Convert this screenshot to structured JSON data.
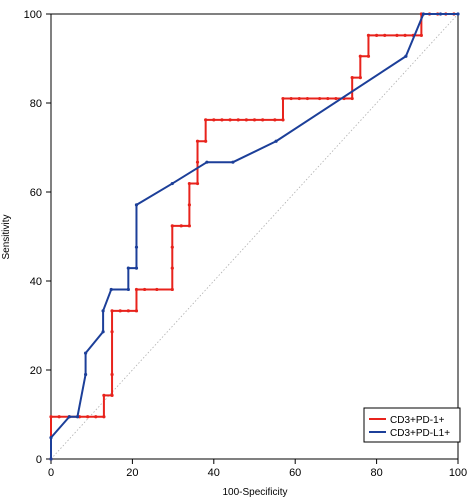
{
  "chart_data": {
    "type": "line",
    "title": "",
    "xlabel": "100-Specificity",
    "ylabel": "Sensitivity",
    "xlim": [
      0,
      100
    ],
    "ylim": [
      0,
      100
    ],
    "x_ticks": [
      0,
      20,
      40,
      60,
      80,
      100
    ],
    "y_ticks": [
      0,
      20,
      40,
      60,
      80,
      100
    ],
    "x_tick_labels": [
      "0",
      "20",
      "40",
      "60",
      "80",
      "100"
    ],
    "y_tick_labels": [
      "0",
      "20",
      "40",
      "60",
      "80",
      "100"
    ],
    "grid": false,
    "reference_line": {
      "from": [
        0,
        0
      ],
      "to": [
        100,
        100
      ],
      "style": "dotted"
    },
    "legend": {
      "position": "bottom-right"
    },
    "series": [
      {
        "name": "CD3+PD-1+",
        "color": "#e8231c",
        "points": [
          [
            0,
            0
          ],
          [
            0,
            9.5
          ],
          [
            2,
            9.5
          ],
          [
            4.5,
            9.5
          ],
          [
            7,
            9.5
          ],
          [
            9,
            9.5
          ],
          [
            11,
            9.5
          ],
          [
            13,
            9.5
          ],
          [
            13,
            14.3
          ],
          [
            15,
            14.3
          ],
          [
            15,
            19
          ],
          [
            15,
            28.6
          ],
          [
            15,
            33.3
          ],
          [
            17,
            33.3
          ],
          [
            19,
            33.3
          ],
          [
            21,
            33.3
          ],
          [
            21,
            38.1
          ],
          [
            23,
            38.1
          ],
          [
            26,
            38.1
          ],
          [
            29.8,
            38.1
          ],
          [
            29.8,
            42.9
          ],
          [
            29.8,
            47.6
          ],
          [
            29.8,
            52.4
          ],
          [
            32,
            52.4
          ],
          [
            34,
            52.4
          ],
          [
            34,
            57.1
          ],
          [
            34,
            61.9
          ],
          [
            36,
            61.9
          ],
          [
            36,
            66.7
          ],
          [
            36,
            71.4
          ],
          [
            38,
            71.4
          ],
          [
            38,
            76.2
          ],
          [
            40,
            76.2
          ],
          [
            42,
            76.2
          ],
          [
            44,
            76.2
          ],
          [
            46,
            76.2
          ],
          [
            48,
            76.2
          ],
          [
            50,
            76.2
          ],
          [
            52,
            76.2
          ],
          [
            55,
            76.2
          ],
          [
            57,
            76.2
          ],
          [
            57,
            81
          ],
          [
            59,
            81
          ],
          [
            61,
            81
          ],
          [
            63,
            81
          ],
          [
            66,
            81
          ],
          [
            68,
            81
          ],
          [
            70,
            81
          ],
          [
            72,
            81
          ],
          [
            74,
            81
          ],
          [
            74,
            85.7
          ],
          [
            76,
            85.7
          ],
          [
            76,
            90.5
          ],
          [
            78,
            90.5
          ],
          [
            78,
            95.2
          ],
          [
            80,
            95.2
          ],
          [
            82,
            95.2
          ],
          [
            85,
            95.2
          ],
          [
            87,
            95.2
          ],
          [
            89,
            95.2
          ],
          [
            91,
            95.2
          ],
          [
            91,
            100
          ],
          [
            93,
            100
          ],
          [
            95,
            100
          ],
          [
            97,
            100
          ],
          [
            99,
            100
          ]
        ]
      },
      {
        "name": "CD3+PD-L1+",
        "color": "#1c3f99",
        "points": [
          [
            0,
            0
          ],
          [
            0,
            4.8
          ],
          [
            4.5,
            9.5
          ],
          [
            6.5,
            9.5
          ],
          [
            8.5,
            19
          ],
          [
            8.5,
            23.8
          ],
          [
            12.8,
            28.6
          ],
          [
            12.8,
            33.3
          ],
          [
            14.8,
            38.1
          ],
          [
            19,
            38.1
          ],
          [
            19,
            42.9
          ],
          [
            21,
            42.9
          ],
          [
            21,
            47.6
          ],
          [
            21,
            57.1
          ],
          [
            29.8,
            61.9
          ],
          [
            38.3,
            66.7
          ],
          [
            44.7,
            66.7
          ],
          [
            55.3,
            71.4
          ],
          [
            87.2,
            90.5
          ],
          [
            91.5,
            100
          ],
          [
            95.7,
            100
          ],
          [
            100,
            100
          ]
        ]
      }
    ]
  }
}
